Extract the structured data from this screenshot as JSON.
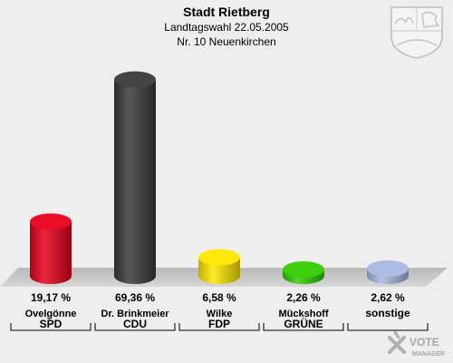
{
  "header": {
    "title": "Stadt Rietberg",
    "subtitle": "Landtagswahl 22.05.2005",
    "district": "Nr. 10 Neuenkirchen"
  },
  "chart_data": {
    "type": "bar",
    "ylim": [
      0,
      75
    ],
    "categories": [
      "SPD",
      "CDU",
      "FDP",
      "GRÜNE",
      "sonstige"
    ],
    "candidates": [
      "Ovelgönne",
      "Dr. Brinkmeier",
      "Wilke",
      "Mückshoff",
      ""
    ],
    "values": [
      19.17,
      69.36,
      6.58,
      2.26,
      2.62
    ],
    "value_labels": [
      "19,17 %",
      "69,36 %",
      "6,58 %",
      "2,26 %",
      "2,62 %"
    ],
    "colors": [
      "#e8001c",
      "#3a3a3a",
      "#ffe800",
      "#33cc00",
      "#a9b8e2"
    ]
  },
  "branding": {
    "logo_text": "VOTE",
    "logo_subtext": "MANAGER",
    "crest_icon": "nrw-coat-of-arms-icon"
  }
}
